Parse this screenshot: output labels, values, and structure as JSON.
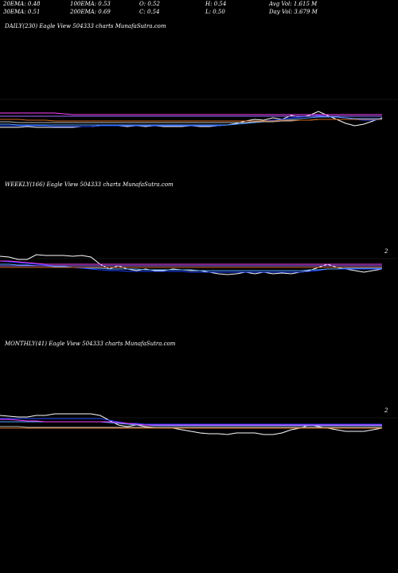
{
  "stats": [
    {
      "id": "ema20",
      "text": "20EMA: 0.48"
    },
    {
      "id": "ema100",
      "text": "100EMA: 0.53"
    },
    {
      "id": "open",
      "text": "O: 0.52"
    },
    {
      "id": "high",
      "text": "H: 0.54"
    },
    {
      "id": "avgvol",
      "text": "Avg Vol: 1.615 M"
    },
    {
      "id": "ema30",
      "text": "30EMA: 0.51"
    },
    {
      "id": "ema200",
      "text": "200EMA: 0.69"
    },
    {
      "id": "close",
      "text": "C: 0.54"
    },
    {
      "id": "low",
      "text": "L: 0.50"
    },
    {
      "id": "dayvol",
      "text": "Day Vol: 3.679 M"
    }
  ],
  "colors": {
    "price": "#ffffff",
    "ema_short": "#1e3fff",
    "ema_mid": "#4fa3ff",
    "ema_magenta": "#ff3fff",
    "ema_orange": "#d2691e",
    "ema_gray": "#bbbbbb",
    "ema_purple": "#9b6bff"
  },
  "chart_data": [
    {
      "type": "line",
      "title": "DAILY(230) Eagle  View  504333 charts MunafaSutra.com",
      "tick_label": "",
      "series": [
        {
          "color_key": "price",
          "values": [
            0.4,
            0.4,
            0.4,
            0.41,
            0.4,
            0.4,
            0.4,
            0.4,
            0.4,
            0.41,
            0.41,
            0.42,
            0.43,
            0.42,
            0.41,
            0.42,
            0.41,
            0.42,
            0.41,
            0.41,
            0.41,
            0.42,
            0.41,
            0.41,
            0.42,
            0.43,
            0.45,
            0.48,
            0.5,
            0.49,
            0.52,
            0.5,
            0.55,
            0.53,
            0.55,
            0.6,
            0.55,
            0.5,
            0.45,
            0.42,
            0.44,
            0.48,
            0.52
          ]
        },
        {
          "color_key": "ema_short",
          "values": [
            0.42,
            0.42,
            0.42,
            0.42,
            0.42,
            0.42,
            0.41,
            0.41,
            0.41,
            0.41,
            0.41,
            0.42,
            0.42,
            0.42,
            0.42,
            0.42,
            0.42,
            0.42,
            0.42,
            0.42,
            0.42,
            0.42,
            0.42,
            0.42,
            0.42,
            0.43,
            0.44,
            0.45,
            0.47,
            0.48,
            0.49,
            0.5,
            0.52,
            0.53,
            0.54,
            0.55,
            0.54,
            0.53,
            0.52,
            0.5,
            0.49,
            0.49,
            0.5
          ]
        },
        {
          "color_key": "ema_mid",
          "values": [
            0.44,
            0.44,
            0.43,
            0.43,
            0.43,
            0.43,
            0.43,
            0.43,
            0.43,
            0.43,
            0.43,
            0.43,
            0.43,
            0.43,
            0.43,
            0.43,
            0.43,
            0.43,
            0.43,
            0.43,
            0.43,
            0.43,
            0.43,
            0.43,
            0.43,
            0.43,
            0.44,
            0.45,
            0.46,
            0.47,
            0.48,
            0.49,
            0.5,
            0.51,
            0.52,
            0.53,
            0.53,
            0.53,
            0.52,
            0.51,
            0.51,
            0.51,
            0.51
          ]
        },
        {
          "color_key": "ema_gray",
          "values": [
            0.47,
            0.47,
            0.46,
            0.46,
            0.46,
            0.46,
            0.46,
            0.46,
            0.46,
            0.46,
            0.46,
            0.46,
            0.46,
            0.46,
            0.46,
            0.46,
            0.46,
            0.46,
            0.46,
            0.46,
            0.46,
            0.46,
            0.46,
            0.46,
            0.46,
            0.46,
            0.46,
            0.46,
            0.47,
            0.47,
            0.47,
            0.48,
            0.48,
            0.49,
            0.49,
            0.5,
            0.5,
            0.5,
            0.5,
            0.5,
            0.5,
            0.5,
            0.5
          ]
        },
        {
          "color_key": "ema_orange",
          "values": [
            0.5,
            0.5,
            0.5,
            0.49,
            0.49,
            0.49,
            0.48,
            0.48,
            0.48,
            0.48,
            0.48,
            0.48,
            0.48,
            0.48,
            0.48,
            0.48,
            0.48,
            0.48,
            0.48,
            0.48,
            0.48,
            0.48,
            0.48,
            0.48,
            0.48,
            0.48,
            0.48,
            0.48,
            0.48,
            0.48,
            0.48,
            0.49,
            0.49,
            0.49,
            0.49,
            0.5,
            0.5,
            0.5,
            0.5,
            0.5,
            0.5,
            0.5,
            0.5
          ]
        },
        {
          "color_key": "ema_magenta",
          "values": [
            0.58,
            0.58,
            0.58,
            0.58,
            0.58,
            0.58,
            0.58,
            0.57,
            0.56,
            0.56,
            0.56,
            0.56,
            0.56,
            0.56,
            0.56,
            0.56,
            0.56,
            0.56,
            0.56,
            0.56,
            0.56,
            0.56,
            0.56,
            0.56,
            0.56,
            0.56,
            0.56,
            0.56,
            0.56,
            0.56,
            0.56,
            0.56,
            0.56,
            0.56,
            0.56,
            0.56,
            0.56,
            0.56,
            0.56,
            0.56,
            0.56,
            0.56,
            0.56
          ]
        },
        {
          "color_key": "ema_purple",
          "values": [
            0.54,
            0.54,
            0.54,
            0.54,
            0.54,
            0.54,
            0.54,
            0.54,
            0.54,
            0.54,
            0.54,
            0.54,
            0.54,
            0.54,
            0.54,
            0.54,
            0.54,
            0.54,
            0.54,
            0.54,
            0.54,
            0.54,
            0.54,
            0.54,
            0.54,
            0.54,
            0.54,
            0.54,
            0.54,
            0.54,
            0.54,
            0.54,
            0.54,
            0.54,
            0.54,
            0.54,
            0.54,
            0.54,
            0.54,
            0.54,
            0.54,
            0.54,
            0.54
          ]
        }
      ],
      "ylim": [
        0.0,
        1.0
      ]
    },
    {
      "type": "line",
      "title": "WEEKLY(166) Eagle  View  504333 charts MunafaSutra.com",
      "tick_label": "2",
      "series": [
        {
          "color_key": "price",
          "values": [
            0.78,
            0.77,
            0.74,
            0.74,
            0.8,
            0.79,
            0.79,
            0.79,
            0.78,
            0.79,
            0.77,
            0.68,
            0.62,
            0.66,
            0.62,
            0.6,
            0.62,
            0.6,
            0.6,
            0.62,
            0.61,
            0.6,
            0.6,
            0.58,
            0.56,
            0.55,
            0.56,
            0.58,
            0.56,
            0.58,
            0.56,
            0.57,
            0.56,
            0.58,
            0.6,
            0.64,
            0.68,
            0.64,
            0.62,
            0.6,
            0.58,
            0.6,
            0.62
          ]
        },
        {
          "color_key": "ema_short",
          "values": [
            0.72,
            0.71,
            0.7,
            0.69,
            0.68,
            0.67,
            0.66,
            0.65,
            0.64,
            0.63,
            0.62,
            0.61,
            0.6,
            0.6,
            0.59,
            0.59,
            0.59,
            0.59,
            0.59,
            0.59,
            0.59,
            0.58,
            0.58,
            0.58,
            0.58,
            0.58,
            0.58,
            0.58,
            0.58,
            0.58,
            0.58,
            0.58,
            0.58,
            0.58,
            0.59,
            0.6,
            0.62,
            0.62,
            0.62,
            0.62,
            0.62,
            0.62,
            0.62
          ]
        },
        {
          "color_key": "ema_mid",
          "values": [
            0.68,
            0.68,
            0.67,
            0.67,
            0.66,
            0.66,
            0.65,
            0.65,
            0.64,
            0.64,
            0.63,
            0.63,
            0.62,
            0.62,
            0.62,
            0.62,
            0.61,
            0.61,
            0.61,
            0.61,
            0.61,
            0.61,
            0.6,
            0.6,
            0.6,
            0.6,
            0.6,
            0.6,
            0.6,
            0.6,
            0.6,
            0.6,
            0.6,
            0.6,
            0.61,
            0.61,
            0.62,
            0.62,
            0.63,
            0.63,
            0.63,
            0.63,
            0.63
          ]
        },
        {
          "color_key": "ema_magenta",
          "values": [
            0.72,
            0.72,
            0.71,
            0.7,
            0.69,
            0.68,
            0.68,
            0.68,
            0.68,
            0.68,
            0.68,
            0.68,
            0.68,
            0.68,
            0.68,
            0.68,
            0.68,
            0.68,
            0.68,
            0.68,
            0.68,
            0.68,
            0.68,
            0.68,
            0.68,
            0.68,
            0.68,
            0.68,
            0.68,
            0.68,
            0.68,
            0.68,
            0.68,
            0.68,
            0.68,
            0.68,
            0.68,
            0.68,
            0.68,
            0.68,
            0.68,
            0.68,
            0.68
          ]
        },
        {
          "color_key": "ema_purple",
          "values": [
            0.66,
            0.66,
            0.66,
            0.66,
            0.66,
            0.66,
            0.66,
            0.66,
            0.66,
            0.66,
            0.66,
            0.66,
            0.66,
            0.66,
            0.66,
            0.66,
            0.66,
            0.66,
            0.66,
            0.66,
            0.66,
            0.66,
            0.66,
            0.66,
            0.66,
            0.66,
            0.66,
            0.66,
            0.66,
            0.66,
            0.66,
            0.66,
            0.66,
            0.66,
            0.66,
            0.66,
            0.66,
            0.66,
            0.66,
            0.66,
            0.66,
            0.66,
            0.66
          ]
        },
        {
          "color_key": "ema_orange",
          "values": [
            0.64,
            0.64,
            0.64,
            0.64,
            0.64,
            0.64,
            0.64,
            0.64,
            0.64,
            0.64,
            0.64,
            0.64,
            0.64,
            0.64,
            0.64,
            0.64,
            0.64,
            0.64,
            0.64,
            0.64,
            0.64,
            0.64,
            0.64,
            0.64,
            0.64,
            0.64,
            0.64,
            0.64,
            0.64,
            0.64,
            0.64,
            0.64,
            0.64,
            0.64,
            0.64,
            0.64,
            0.64,
            0.64,
            0.64,
            0.64,
            0.64,
            0.64,
            0.64
          ]
        }
      ],
      "ylim": [
        0.0,
        1.0
      ]
    },
    {
      "type": "line",
      "title": "MONTHLY(41) Eagle  View  504333 charts MunafaSutra.com",
      "tick_label": "2",
      "series": [
        {
          "color_key": "price",
          "values": [
            0.78,
            0.77,
            0.76,
            0.76,
            0.78,
            0.78,
            0.8,
            0.8,
            0.8,
            0.8,
            0.8,
            0.78,
            0.72,
            0.66,
            0.64,
            0.66,
            0.64,
            0.63,
            0.62,
            0.62,
            0.6,
            0.58,
            0.56,
            0.55,
            0.55,
            0.54,
            0.56,
            0.56,
            0.56,
            0.54,
            0.54,
            0.56,
            0.6,
            0.62,
            0.66,
            0.64,
            0.62,
            0.6,
            0.58,
            0.58,
            0.58,
            0.6,
            0.62
          ]
        },
        {
          "color_key": "ema_short",
          "values": [
            0.74,
            0.74,
            0.74,
            0.74,
            0.74,
            0.74,
            0.74,
            0.74,
            0.74,
            0.74,
            0.74,
            0.74,
            0.72,
            0.7,
            0.68,
            0.68,
            0.67,
            0.67,
            0.67,
            0.67,
            0.67,
            0.67,
            0.67,
            0.67,
            0.67,
            0.67,
            0.67,
            0.67,
            0.67,
            0.67,
            0.67,
            0.67,
            0.67,
            0.67,
            0.67,
            0.67,
            0.67,
            0.67,
            0.67,
            0.67,
            0.67,
            0.67,
            0.67
          ]
        },
        {
          "color_key": "ema_mid",
          "values": [
            0.7,
            0.7,
            0.7,
            0.7,
            0.7,
            0.7,
            0.7,
            0.7,
            0.7,
            0.7,
            0.7,
            0.7,
            0.69,
            0.68,
            0.67,
            0.66,
            0.66,
            0.65,
            0.65,
            0.65,
            0.65,
            0.65,
            0.65,
            0.65,
            0.65,
            0.65,
            0.65,
            0.65,
            0.65,
            0.65,
            0.65,
            0.65,
            0.65,
            0.65,
            0.65,
            0.65,
            0.65,
            0.65,
            0.65,
            0.65,
            0.65,
            0.65,
            0.65
          ]
        },
        {
          "color_key": "ema_magenta",
          "values": [
            0.73,
            0.73,
            0.72,
            0.71,
            0.71,
            0.7,
            0.7,
            0.7,
            0.7,
            0.7,
            0.7,
            0.7,
            0.7,
            0.69,
            0.68,
            0.67,
            0.66,
            0.66,
            0.66,
            0.66,
            0.66,
            0.66,
            0.66,
            0.66,
            0.66,
            0.66,
            0.66,
            0.66,
            0.66,
            0.66,
            0.66,
            0.66,
            0.66,
            0.66,
            0.66,
            0.66,
            0.66,
            0.66,
            0.66,
            0.66,
            0.66,
            0.66,
            0.66
          ]
        },
        {
          "color_key": "ema_gray",
          "values": [
            0.64,
            0.64,
            0.64,
            0.63,
            0.63,
            0.63,
            0.63,
            0.63,
            0.63,
            0.63,
            0.63,
            0.63,
            0.63,
            0.63,
            0.63,
            0.63,
            0.63,
            0.63,
            0.63,
            0.63,
            0.63,
            0.63,
            0.63,
            0.63,
            0.63,
            0.63,
            0.63,
            0.63,
            0.63,
            0.63,
            0.63,
            0.63,
            0.63,
            0.63,
            0.63,
            0.63,
            0.63,
            0.63,
            0.63,
            0.63,
            0.63,
            0.63,
            0.63
          ]
        },
        {
          "color_key": "ema_orange",
          "values": [
            0.62,
            0.62,
            0.62,
            0.62,
            0.62,
            0.62,
            0.62,
            0.62,
            0.62,
            0.62,
            0.62,
            0.62,
            0.62,
            0.62,
            0.62,
            0.62,
            0.62,
            0.62,
            0.62,
            0.62,
            0.62,
            0.62,
            0.62,
            0.62,
            0.62,
            0.62,
            0.62,
            0.62,
            0.62,
            0.62,
            0.62,
            0.62,
            0.62,
            0.62,
            0.62,
            0.62,
            0.62,
            0.62,
            0.62,
            0.62,
            0.62,
            0.62,
            0.62
          ]
        }
      ],
      "ylim": [
        0.0,
        1.0
      ]
    }
  ]
}
